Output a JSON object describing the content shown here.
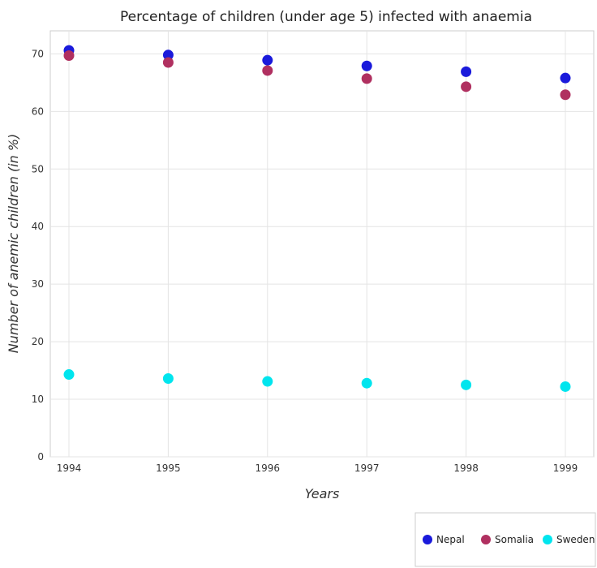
{
  "chart_data": {
    "type": "scatter",
    "title": "Percentage of children (under age 5) infected with anaemia",
    "xlabel": "Years",
    "ylabel": "Number of anemic children (in %)",
    "categories": [
      "1994",
      "1995",
      "1996",
      "1997",
      "1998",
      "1999"
    ],
    "ylim": [
      0,
      74
    ],
    "yticks": [
      0,
      10,
      20,
      30,
      40,
      50,
      60,
      70
    ],
    "grid": true,
    "legend_position": "bottom-right",
    "series": [
      {
        "name": "Nepal",
        "color": "#1a1adb",
        "values": [
          70.6,
          69.8,
          68.9,
          67.9,
          66.9,
          65.8
        ]
      },
      {
        "name": "Somalia",
        "color": "#b03060",
        "values": [
          69.7,
          68.5,
          67.1,
          65.7,
          64.3,
          62.9
        ]
      },
      {
        "name": "Sweden",
        "color": "#00e5ee",
        "values": [
          14.3,
          13.6,
          13.1,
          12.8,
          12.5,
          12.2
        ]
      }
    ]
  }
}
